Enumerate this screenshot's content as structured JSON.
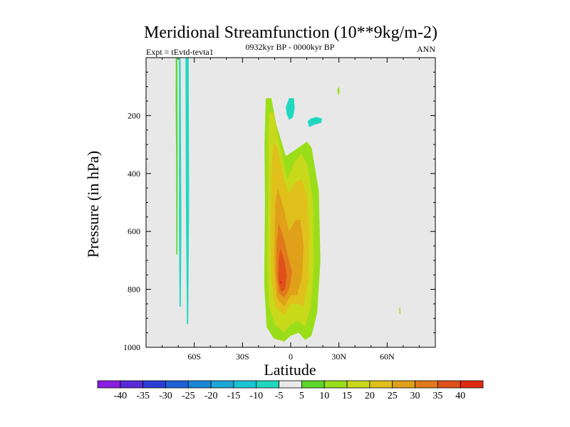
{
  "chart_data": {
    "type": "contour",
    "title": "Meridional Streamfunction (10**9kg/m-2)",
    "left_label": "Expt = tEvtd-tevta1",
    "center_label": "0932kyr BP - 0000kyr BP",
    "right_label": "ANN",
    "xlabel": "Latitude",
    "ylabel": "Pressure (in hPa)",
    "xlim": [
      -90,
      90
    ],
    "ylim": [
      1000,
      0
    ],
    "x_ticks": [
      {
        "value": -60,
        "label": "60S"
      },
      {
        "value": -30,
        "label": "30S"
      },
      {
        "value": 0,
        "label": "0"
      },
      {
        "value": 30,
        "label": "30N"
      },
      {
        "value": 60,
        "label": "60N"
      }
    ],
    "y_ticks": [
      {
        "value": 200,
        "label": "200"
      },
      {
        "value": 400,
        "label": "400"
      },
      {
        "value": 600,
        "label": "600"
      },
      {
        "value": 800,
        "label": "800"
      },
      {
        "value": 1000,
        "label": "1000"
      }
    ],
    "background_color": "#e8e8e8",
    "levels": [
      -40,
      -35,
      -30,
      -25,
      -20,
      -15,
      -10,
      -5,
      5,
      10,
      15,
      20,
      25,
      30,
      35,
      40
    ],
    "level_labels": [
      "-40",
      "-35",
      "-30",
      "-25",
      "-20",
      "-15",
      "-10",
      "-5",
      "5",
      "10",
      "15",
      "20",
      "25",
      "30",
      "35",
      "40"
    ],
    "colors": [
      "#8a1ee0",
      "#5a2ad8",
      "#2a3ed6",
      "#1e62d8",
      "#1a86d8",
      "#1aa6d6",
      "#1ac4d2",
      "#20d8c0",
      "#e8e8e8",
      "#5cd82a",
      "#9ade1a",
      "#c8d81a",
      "#e0c01a",
      "#e0a01a",
      "#e07a1a",
      "#e0501a",
      "#e02a10"
    ],
    "features": [
      {
        "name": "sh-strip-west",
        "polygon": [
          [
            -71.5,
            0
          ],
          [
            -70.5,
            0
          ],
          [
            -70.3,
            350
          ],
          [
            -71.3,
            350
          ],
          [
            -71.6,
            150
          ]
        ],
        "color_index": 9
      },
      {
        "name": "sh-strip-west-lower",
        "polygon": [
          [
            -71.3,
            350
          ],
          [
            -70.3,
            350
          ],
          [
            -70.5,
            680
          ],
          [
            -71.2,
            680
          ]
        ],
        "color_index": 9
      },
      {
        "name": "sh-strip-mid",
        "polygon": [
          [
            -69.5,
            0
          ],
          [
            -68.5,
            0
          ],
          [
            -68.0,
            600
          ],
          [
            -68.4,
            860
          ],
          [
            -69.2,
            860
          ],
          [
            -69.5,
            600
          ]
        ],
        "color_index": 7
      },
      {
        "name": "sh-strip-east",
        "polygon": [
          [
            -65.5,
            0
          ],
          [
            -63.5,
            0
          ],
          [
            -63.2,
            500
          ],
          [
            -63.8,
            920
          ],
          [
            -64.6,
            920
          ],
          [
            -65.2,
            500
          ]
        ],
        "color_index": 7
      },
      {
        "name": "trop-gt5",
        "polygon": [
          [
            -15.5,
            140
          ],
          [
            -12.0,
            140
          ],
          [
            -9.0,
            230
          ],
          [
            -3.0,
            340
          ],
          [
            5.0,
            310
          ],
          [
            10.0,
            290
          ],
          [
            13.0,
            310
          ],
          [
            17.5,
            460
          ],
          [
            18.5,
            700
          ],
          [
            16.5,
            880
          ],
          [
            13.0,
            960
          ],
          [
            9.0,
            975
          ],
          [
            5.0,
            950
          ],
          [
            0.0,
            960
          ],
          [
            -4.0,
            980
          ],
          [
            -10.5,
            970
          ],
          [
            -15.0,
            930
          ],
          [
            -16.5,
            780
          ],
          [
            -16.0,
            500
          ],
          [
            -16.3,
            300
          ]
        ],
        "color_index": 10
      },
      {
        "name": "trop-gt10",
        "polygon": [
          [
            -13.5,
            190
          ],
          [
            -10.5,
            190
          ],
          [
            -7.0,
            300
          ],
          [
            -2.0,
            420
          ],
          [
            2.5,
            360
          ],
          [
            6.5,
            330
          ],
          [
            10.5,
            370
          ],
          [
            14.0,
            500
          ],
          [
            14.5,
            720
          ],
          [
            12.5,
            860
          ],
          [
            9.0,
            930
          ],
          [
            5.0,
            910
          ],
          [
            0.0,
            920
          ],
          [
            -4.0,
            950
          ],
          [
            -10.0,
            920
          ],
          [
            -13.5,
            860
          ],
          [
            -14.5,
            700
          ],
          [
            -14.0,
            450
          ],
          [
            -14.0,
            280
          ]
        ],
        "color_index": 11
      },
      {
        "name": "trop-gt15",
        "polygon": [
          [
            -11.0,
            300
          ],
          [
            -8.5,
            300
          ],
          [
            -5.0,
            400
          ],
          [
            -1.5,
            470
          ],
          [
            3.0,
            430
          ],
          [
            7.0,
            420
          ],
          [
            10.0,
            470
          ],
          [
            11.5,
            600
          ],
          [
            11.0,
            760
          ],
          [
            8.0,
            860
          ],
          [
            4.0,
            850
          ],
          [
            0.0,
            850
          ],
          [
            -4.0,
            890
          ],
          [
            -9.5,
            860
          ],
          [
            -12.0,
            770
          ],
          [
            -12.5,
            600
          ],
          [
            -12.0,
            400
          ]
        ],
        "color_index": 12
      },
      {
        "name": "trop-gt20",
        "polygon": [
          [
            -8.0,
            450
          ],
          [
            -4.5,
            520
          ],
          [
            -1.0,
            600
          ],
          [
            3.0,
            560
          ],
          [
            6.0,
            560
          ],
          [
            8.0,
            650
          ],
          [
            7.0,
            760
          ],
          [
            4.0,
            820
          ],
          [
            0.0,
            820
          ],
          [
            -4.0,
            860
          ],
          [
            -8.5,
            830
          ],
          [
            -10.0,
            740
          ],
          [
            -10.0,
            620
          ],
          [
            -9.5,
            500
          ]
        ],
        "color_index": 13
      },
      {
        "name": "trop-gt25",
        "polygon": [
          [
            -7.5,
            570
          ],
          [
            -4.0,
            630
          ],
          [
            -1.5,
            690
          ],
          [
            1.0,
            740
          ],
          [
            -1.0,
            800
          ],
          [
            -4.0,
            830
          ],
          [
            -7.5,
            810
          ],
          [
            -9.0,
            740
          ],
          [
            -8.8,
            640
          ]
        ],
        "color_index": 14
      },
      {
        "name": "trop-gt30",
        "polygon": [
          [
            -6.5,
            660
          ],
          [
            -4.0,
            700
          ],
          [
            -2.5,
            750
          ],
          [
            -3.5,
            800
          ],
          [
            -6.0,
            810
          ],
          [
            -7.8,
            770
          ],
          [
            -7.5,
            700
          ]
        ],
        "color_index": 15
      },
      {
        "name": "trop-core",
        "polygon": [
          [
            -6.3,
            770
          ],
          [
            -5.5,
            775
          ],
          [
            -6.3,
            782
          ],
          [
            -7.0,
            776
          ]
        ],
        "color_index": 16
      },
      {
        "name": "neg-blob-upper",
        "polygon": [
          [
            -3.0,
            170
          ],
          [
            -1.0,
            140
          ],
          [
            2.0,
            140
          ],
          [
            2.5,
            175
          ],
          [
            1.5,
            205
          ],
          [
            -1.0,
            215
          ],
          [
            -2.5,
            195
          ]
        ],
        "color_index": 7
      },
      {
        "name": "neg-blob-right",
        "polygon": [
          [
            10.5,
            220
          ],
          [
            12.5,
            210
          ],
          [
            16.0,
            205
          ],
          [
            19.5,
            210
          ],
          [
            19.0,
            225
          ],
          [
            14.5,
            232
          ],
          [
            11.5,
            240
          ]
        ],
        "color_index": 7
      },
      {
        "name": "nh-speck-upper",
        "polygon": [
          [
            29.0,
            110
          ],
          [
            30.0,
            100
          ],
          [
            30.5,
            120
          ],
          [
            29.5,
            130
          ]
        ],
        "color_index": 10
      },
      {
        "name": "nh-speck-lower",
        "polygon": [
          [
            67.6,
            865
          ],
          [
            68.2,
            860
          ],
          [
            68.3,
            885
          ],
          [
            67.7,
            885
          ]
        ],
        "color_index": 10
      }
    ]
  }
}
